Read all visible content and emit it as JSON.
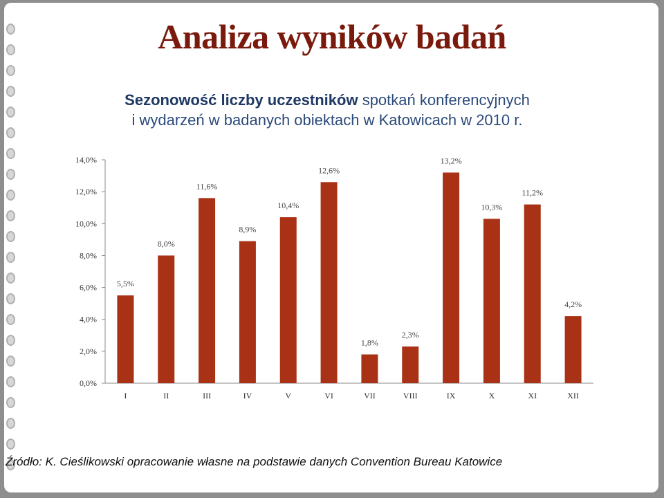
{
  "slide": {
    "title": "Analiza wyników badań",
    "subtitle_bold": "Sezonowość liczby uczestników",
    "subtitle_rest_line1": " spotkań konferencyjnych",
    "subtitle_line2": "i wydarzeń w badanych obiektach w Katowicach w 2010 r.",
    "source": "Źródło: K. Cieślikowski opracowanie własne na podstawie danych Convention Bureau Katowice"
  },
  "chart_data": {
    "type": "bar",
    "categories": [
      "I",
      "II",
      "III",
      "IV",
      "V",
      "VI",
      "VII",
      "VIII",
      "IX",
      "X",
      "XI",
      "XII"
    ],
    "values": [
      5.5,
      8.0,
      11.6,
      8.9,
      10.4,
      12.6,
      1.8,
      2.3,
      13.2,
      10.3,
      11.2,
      4.2
    ],
    "data_labels": [
      "5,5%",
      "8,0%",
      "11,6%",
      "8,9%",
      "10,4%",
      "12,6%",
      "1,8%",
      "2,3%",
      "13,2%",
      "10,3%",
      "11,2%",
      "4,2%"
    ],
    "y_ticks": [
      0,
      2,
      4,
      6,
      8,
      10,
      12,
      14
    ],
    "y_tick_labels": [
      "0,0%",
      "2,0%",
      "4,0%",
      "6,0%",
      "8,0%",
      "10,0%",
      "12,0%",
      "14,0%"
    ],
    "ylim": [
      0,
      14
    ],
    "grid": false,
    "legend": "none",
    "bar_color": "#a93216"
  }
}
